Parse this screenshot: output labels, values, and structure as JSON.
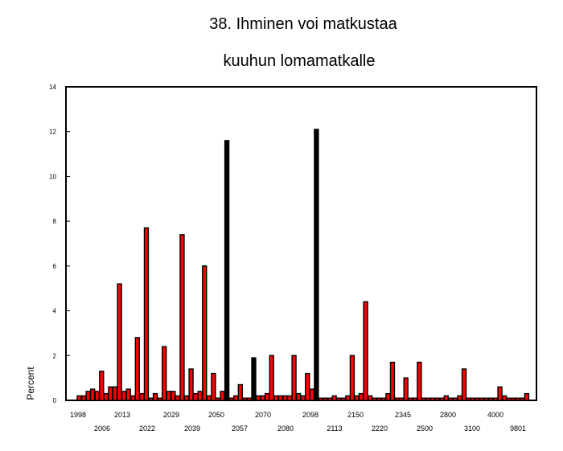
{
  "chart_data": {
    "type": "bar",
    "title_lines": [
      "38. Ihminen voi matkustaa",
      "kuuhun lomamatkalle"
    ],
    "ylabel": "Percent",
    "ylim": [
      0,
      14
    ],
    "yticks": [
      "0",
      "2",
      "4",
      "6",
      "8",
      "10",
      "12",
      "14"
    ],
    "grid": false,
    "legend": "none",
    "bar_color": "#ff0000",
    "edge_color": "#000000",
    "category_labels_row1": [
      "1998",
      "2013",
      "2029",
      "2050",
      "2070",
      "2098",
      "2150",
      "2345",
      "2800",
      "4000"
    ],
    "category_labels_row2": [
      "2006",
      "2022",
      "2039",
      "2057",
      "2080",
      "2113",
      "2220",
      "2500",
      "3100",
      "9801"
    ],
    "values": [
      0.2,
      0.2,
      0.4,
      0.5,
      0.4,
      1.3,
      0.3,
      0.6,
      0.6,
      5.2,
      0.4,
      0.5,
      0.2,
      2.8,
      0.3,
      7.7,
      0.1,
      0.3,
      0.1,
      2.4,
      0.4,
      0.4,
      0.2,
      7.4,
      0.2,
      1.4,
      0.3,
      0.4,
      6.0,
      0.2,
      1.2,
      0.1,
      0.4,
      11.6,
      0.1,
      0.2,
      0.7,
      0.1,
      0.1,
      1.9,
      0.2,
      0.2,
      0.3,
      2.0,
      0.2,
      0.2,
      0.2,
      0.2,
      2.0,
      0.3,
      0.2,
      1.2,
      0.5,
      12.1,
      0.1,
      0.1,
      0.1,
      0.2,
      0.1,
      0.1,
      0.2,
      2.0,
      0.2,
      0.3,
      4.4,
      0.2,
      0.1,
      0.1,
      0.1,
      0.3,
      1.7,
      0.1,
      0.1,
      1.0,
      0.1,
      0.1,
      1.7,
      0.1,
      0.1,
      0.1,
      0.1,
      0.1,
      0.2,
      0.1,
      0.1,
      0.2,
      1.4,
      0.1,
      0.1,
      0.1,
      0.1,
      0.1,
      0.1,
      0.1,
      0.6,
      0.2,
      0.1,
      0.1,
      0.1,
      0.1,
      0.3
    ],
    "black_bar_indices": [
      33,
      39,
      53
    ]
  }
}
